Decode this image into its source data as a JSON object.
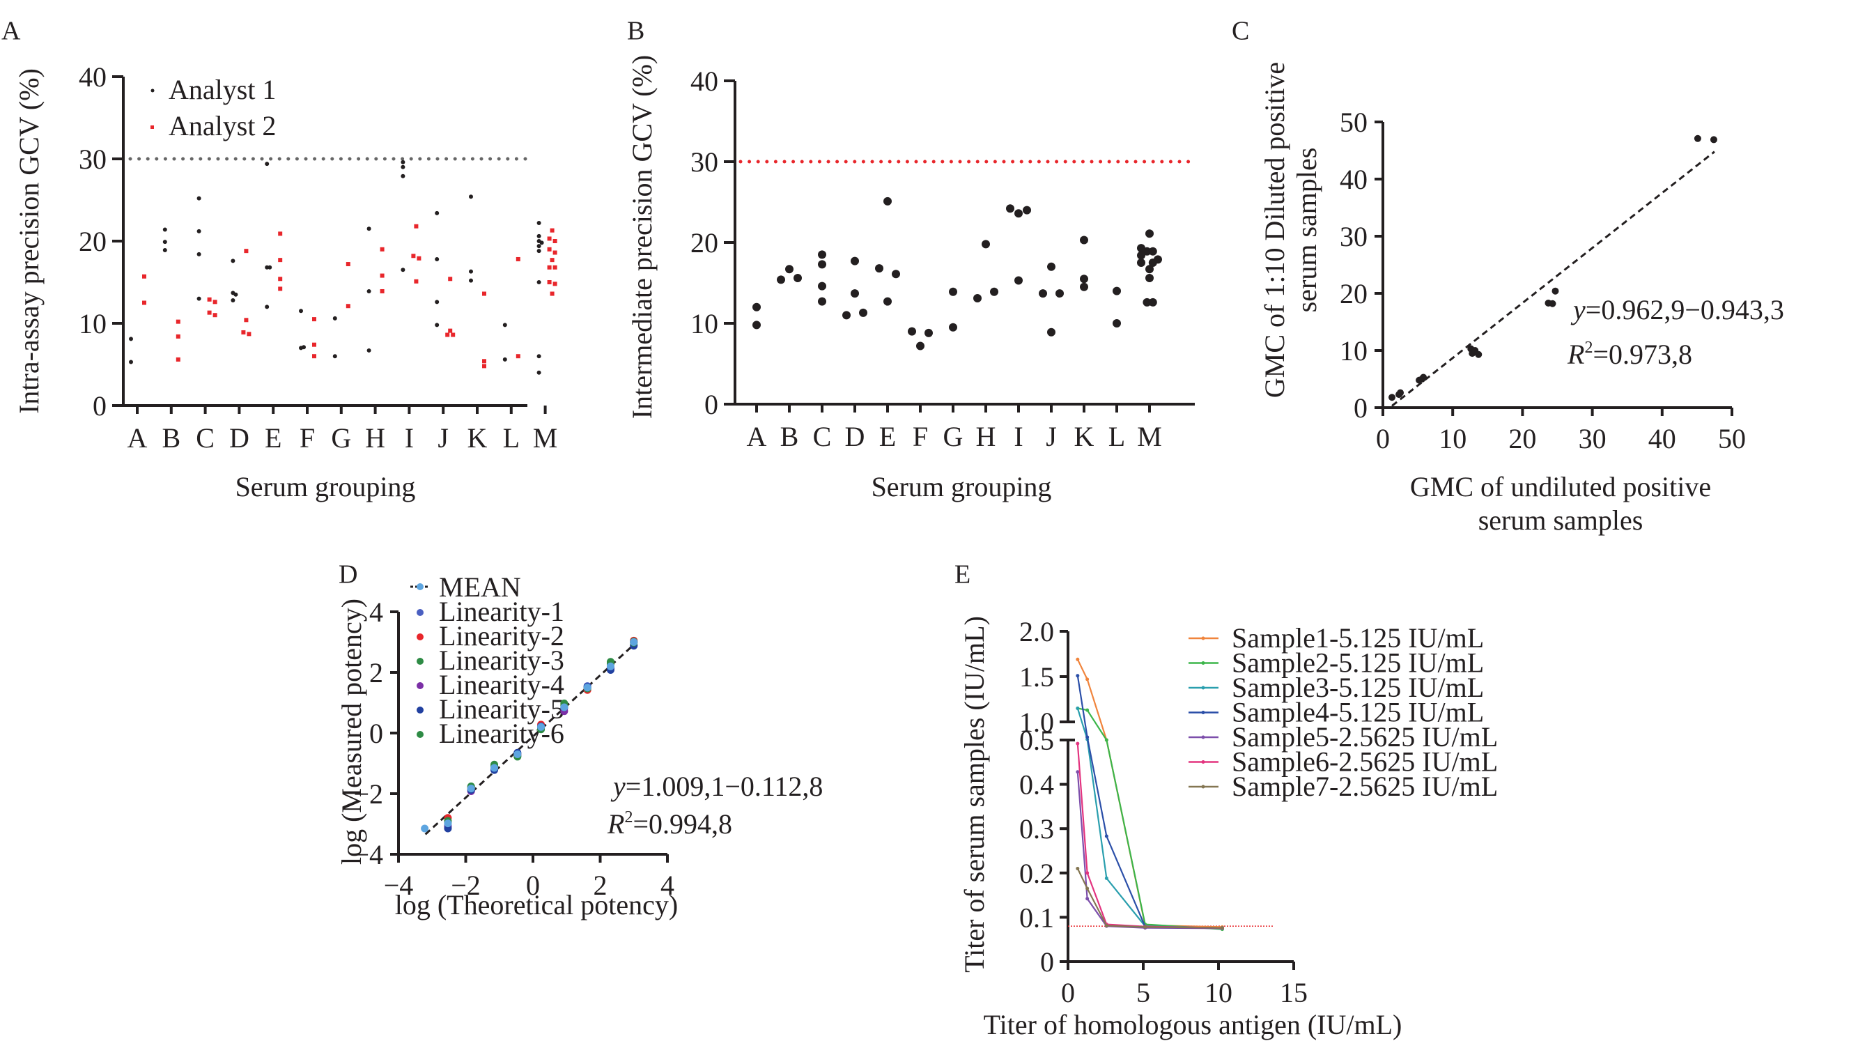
{
  "chart_data": [
    {
      "panel": "A",
      "type": "scatter",
      "panel_label": "A",
      "xlabel": "Serum grouping",
      "ylabel": "Intra-assay precision GCV (%)",
      "categories": [
        "A",
        "B",
        "C",
        "D",
        "E",
        "F",
        "G",
        "H",
        "I",
        "J",
        "K",
        "L",
        "M"
      ],
      "yticks": [
        "0",
        "10",
        "20",
        "30",
        "40"
      ],
      "ylim": [
        0,
        40
      ],
      "reference_line": {
        "y": 30,
        "style": "dotted",
        "color": "#666666"
      },
      "legend": {
        "placement": "top-left",
        "entries": [
          "Analyst 1",
          "Analyst 2"
        ]
      },
      "series": [
        {
          "name": "Analyst 1",
          "color": "#231f20",
          "marker": "circle",
          "points": {
            "A": [
              8.1,
              5.3
            ],
            "B": [
              21.4,
              19.9,
              18.9
            ],
            "C": [
              25.2,
              21.2,
              18.4,
              13.0
            ],
            "D": [
              17.6,
              13.7,
              13.5,
              12.8
            ],
            "E": [
              29.4,
              16.8,
              16.8,
              12.0
            ],
            "F": [
              11.5,
              7.0,
              7.1
            ],
            "G": [
              10.6,
              6.0
            ],
            "H": [
              21.5,
              13.9,
              6.7
            ],
            "I": [
              29.6,
              29.0,
              27.9,
              16.5
            ],
            "J": [
              23.4,
              17.8,
              12.6,
              9.8
            ],
            "K": [
              25.4,
              16.3,
              15.2
            ],
            "L": [
              9.8,
              5.6
            ],
            "M": [
              22.2,
              20.6,
              20.0,
              19.8,
              19.4,
              18.8,
              15.0,
              6.0,
              4.0
            ]
          }
        },
        {
          "name": "Analyst 2",
          "color": "#e8262b",
          "marker": "square",
          "points": {
            "A": [
              15.7,
              12.5
            ],
            "B": [
              10.2,
              8.4,
              5.6
            ],
            "C": [
              12.9,
              12.6,
              11.3,
              11.0
            ],
            "D": [
              18.8,
              10.4,
              8.9,
              8.7
            ],
            "E": [
              20.9,
              17.7,
              15.4,
              14.2
            ],
            "F": [
              10.5,
              7.4,
              6.0
            ],
            "G": [
              17.2,
              12.1
            ],
            "H": [
              19.0,
              15.8,
              13.9
            ],
            "I": [
              21.8,
              18.2,
              17.9,
              15.1
            ],
            "J": [
              15.4,
              9.1,
              8.6,
              8.6
            ],
            "K": [
              13.6,
              5.4,
              4.8
            ],
            "L": [
              17.8,
              6.0
            ],
            "M": [
              21.3,
              20.3,
              20.0,
              19.0,
              18.6,
              17.7,
              16.8,
              16.8,
              15.0,
              14.8,
              13.6
            ]
          }
        }
      ]
    },
    {
      "panel": "B",
      "type": "scatter",
      "panel_label": "B",
      "xlabel": "Serum grouping",
      "ylabel": "Intermediate precision GCV (%)",
      "categories": [
        "A",
        "B",
        "C",
        "D",
        "E",
        "F",
        "G",
        "H",
        "I",
        "J",
        "K",
        "L",
        "M"
      ],
      "yticks": [
        "0",
        "10",
        "20",
        "30",
        "40"
      ],
      "ylim": [
        0,
        40
      ],
      "reference_line": {
        "y": 30,
        "style": "dotted",
        "color": "#e8262b"
      },
      "series": [
        {
          "name": "GCV",
          "color": "#231f20",
          "marker": "circle",
          "points": {
            "A": [
              [
                0,
                12.0
              ],
              [
                0,
                9.8
              ]
            ],
            "B": [
              [
                -1,
                15.4
              ],
              [
                0,
                16.7
              ],
              [
                1,
                15.6
              ]
            ],
            "C": [
              [
                0,
                18.5
              ],
              [
                0,
                17.3
              ],
              [
                0,
                14.6
              ],
              [
                0,
                12.7
              ]
            ],
            "D": [
              [
                -1,
                11.0
              ],
              [
                0,
                17.7
              ],
              [
                0,
                13.7
              ],
              [
                1,
                11.3
              ]
            ],
            "E": [
              [
                -1,
                16.8
              ],
              [
                0,
                25.1
              ],
              [
                0,
                12.7
              ],
              [
                1,
                16.1
              ]
            ],
            "F": [
              [
                -1,
                9.0
              ],
              [
                0,
                7.2
              ],
              [
                1,
                8.8
              ]
            ],
            "G": [
              [
                0,
                13.9
              ],
              [
                0,
                9.5
              ]
            ],
            "H": [
              [
                -1,
                13.1
              ],
              [
                0,
                19.8
              ],
              [
                1,
                13.9
              ]
            ],
            "I": [
              [
                -1,
                24.2
              ],
              [
                0,
                23.6
              ],
              [
                1,
                24.0
              ],
              [
                0,
                15.3
              ]
            ],
            "J": [
              [
                -1,
                13.7
              ],
              [
                0,
                17.0
              ],
              [
                0,
                8.9
              ],
              [
                1,
                13.7
              ]
            ],
            "K": [
              [
                0,
                20.3
              ],
              [
                0,
                15.5
              ],
              [
                0,
                14.5
              ]
            ],
            "L": [
              [
                0,
                14.0
              ],
              [
                0,
                10.0
              ]
            ],
            "M": [
              [
                0,
                21.1
              ],
              [
                -1,
                19.3
              ],
              [
                -0.3,
                18.9
              ],
              [
                0.4,
                18.9
              ],
              [
                -1,
                18.4
              ],
              [
                1,
                17.9
              ],
              [
                0.4,
                17.5
              ],
              [
                -1,
                17.5
              ],
              [
                0,
                16.7
              ],
              [
                0,
                15.6
              ],
              [
                -0.3,
                12.6
              ],
              [
                0.4,
                12.6
              ]
            ]
          }
        }
      ]
    },
    {
      "panel": "C",
      "type": "scatter",
      "panel_label": "C",
      "xlabel": "GMC of undiluted positive serum samples",
      "ylabel": "GMC of 1:10 Diluted positive serum samples",
      "xlim": [
        0,
        50
      ],
      "ylim": [
        0,
        50
      ],
      "xticks": [
        "0",
        "10",
        "20",
        "30",
        "40",
        "50"
      ],
      "yticks": [
        "0",
        "10",
        "20",
        "30",
        "40",
        "50"
      ],
      "x": [
        1.3,
        2.3,
        2.5,
        5.2,
        5.6,
        5.8,
        12.6,
        12.8,
        13.2,
        13.7,
        23.7,
        24.3,
        24.7,
        45.1,
        47.4
      ],
      "y": [
        1.8,
        2.3,
        2.6,
        4.8,
        5.0,
        5.3,
        10.3,
        9.5,
        10.0,
        9.3,
        18.3,
        18.2,
        20.4,
        47.1,
        46.9
      ],
      "trendline": {
        "slope": 0.9629,
        "intercept": -0.9433,
        "x_range": [
          1.3,
          47.5
        ],
        "style": "dashed"
      },
      "annotations": {
        "equation": "=0.962,9−0.943,3",
        "equation_var": "y",
        "r2_label": "R",
        "r2_sup": "2",
        "r2_value": "=0.973,8"
      },
      "point_color": "#231f20"
    },
    {
      "panel": "D",
      "type": "scatter",
      "panel_label": "D",
      "xlabel": "log (Theoretical potency)",
      "ylabel": "log (Measured potency)",
      "xlim": [
        -4,
        4
      ],
      "ylim": [
        -4,
        4
      ],
      "xticks": [
        "−4",
        "−2",
        "0",
        "2",
        "4"
      ],
      "yticks": [
        "−4",
        "−2",
        "0",
        "2",
        "4"
      ],
      "x_levels": [
        -3.22,
        -2.53,
        -1.84,
        -1.15,
        -0.46,
        0.24,
        0.93,
        1.62,
        2.31,
        3.0
      ],
      "legend": {
        "placement": "top-left",
        "entries": [
          "MEAN",
          "Linearity-1",
          "Linearity-2",
          "Linearity-3",
          "Linearity-4",
          "Linearity-5",
          "Linearity-6"
        ]
      },
      "series": [
        {
          "name": "Linearity-1",
          "color": "#4a5fc1",
          "y": [
            null,
            -3.05,
            -1.85,
            -1.2,
            -0.68,
            0.2,
            0.82,
            1.55,
            2.15,
            2.9
          ]
        },
        {
          "name": "Linearity-2",
          "color": "#e8262b",
          "y": [
            null,
            -2.8,
            -1.78,
            -1.12,
            -0.7,
            0.28,
            0.95,
            1.42,
            2.3,
            3.05
          ]
        },
        {
          "name": "Linearity-3",
          "color": "#2e8b45",
          "y": [
            null,
            -2.95,
            -1.76,
            -1.04,
            -0.78,
            0.12,
            0.98,
            1.5,
            2.35,
            3.02
          ]
        },
        {
          "name": "Linearity-4",
          "color": "#7b2fa6",
          "y": [
            null,
            -3.1,
            -1.92,
            -1.15,
            -0.72,
            0.18,
            0.72,
            1.48,
            2.12,
            3.0
          ]
        },
        {
          "name": "Linearity-5",
          "color": "#2140a0",
          "y": [
            null,
            -3.15,
            -1.88,
            -1.22,
            -0.65,
            0.22,
            0.85,
            1.52,
            2.08,
            2.88
          ]
        },
        {
          "name": "Linearity-6",
          "color": "#2e8b45",
          "y": [
            null,
            -2.9,
            -1.8,
            -1.1,
            -0.76,
            0.15,
            0.9,
            1.47,
            2.28,
            2.98
          ]
        },
        {
          "name": "MEAN",
          "color": "#5da5e0",
          "y": [
            -3.15,
            -2.98,
            -1.83,
            -1.15,
            -0.7,
            0.2,
            0.85,
            1.5,
            2.2,
            3.0
          ]
        }
      ],
      "trendline": {
        "slope": 1.0091,
        "intercept": -0.1128,
        "x_range": [
          -3.2,
          3.05
        ],
        "style": "dashed"
      },
      "annotations": {
        "equation": "=1.009,1−0.112,8",
        "equation_var": "y",
        "r2_label": "R",
        "r2_sup": "2",
        "r2_value": "=0.994,8"
      }
    },
    {
      "panel": "E",
      "type": "line",
      "panel_label": "E",
      "xlabel": "Titer of homologous antigen (IU/mL)",
      "ylabel": "Titer of serum samples (IU/mL)",
      "xlim": [
        0,
        15
      ],
      "ylim": [
        0,
        2.0
      ],
      "y_axis_break": [
        0.5,
        1.0
      ],
      "xticks": [
        "0",
        "5",
        "10",
        "15"
      ],
      "yticks_lower": [
        "0",
        "0.1",
        "0.2",
        "0.3",
        "0.4",
        "0.5"
      ],
      "yticks_upper": [
        "1.0",
        "1.5",
        "2.0"
      ],
      "x": [
        0.64,
        1.28,
        2.5625,
        5.125,
        10.25
      ],
      "reference_line": {
        "y": 0.08,
        "style": "dotted",
        "color": "#e8262b"
      },
      "legend": {
        "placement": "top-right"
      },
      "series": [
        {
          "name": "Sample1-5.125 IU/mL",
          "color": "#f0843c",
          "y": [
            1.69,
            1.47,
            0.5,
            0.082,
            0.078
          ]
        },
        {
          "name": "Sample2-5.125 IU/mL",
          "color": "#3cb54a",
          "y": [
            1.15,
            1.13,
            0.5,
            0.084,
            0.073
          ]
        },
        {
          "name": "Sample3-5.125 IU/mL",
          "color": "#2a9fae",
          "y": [
            1.15,
            0.52,
            0.188,
            0.08,
            0.075
          ]
        },
        {
          "name": "Sample4-5.125 IU/mL",
          "color": "#2b4fa8",
          "y": [
            1.51,
            0.58,
            0.283,
            0.079,
            0.076
          ]
        },
        {
          "name": "Sample5-2.5625 IU/mL",
          "color": "#7d4fab",
          "y": [
            0.428,
            0.142,
            0.08,
            0.076,
            0.075
          ]
        },
        {
          "name": "Sample6-2.5625 IU/mL",
          "color": "#e3337f",
          "y": [
            0.492,
            0.2,
            0.084,
            0.079,
            0.076
          ]
        },
        {
          "name": "Sample7-2.5625 IU/mL",
          "color": "#847652",
          "y": [
            0.21,
            0.165,
            0.081,
            0.078,
            0.076
          ]
        }
      ]
    }
  ]
}
